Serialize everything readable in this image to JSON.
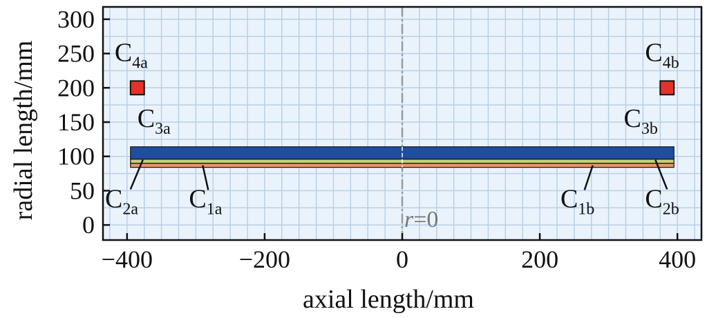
{
  "chart_data": {
    "type": "diagram",
    "xlabel": "axial length/mm",
    "ylabel": "radial length/mm",
    "xlim": [
      -435,
      435
    ],
    "ylim": [
      -22,
      318
    ],
    "xticks": [
      -400,
      -200,
      0,
      200,
      400
    ],
    "xtick_labels": [
      "−400",
      "−200",
      "0",
      "200",
      "400"
    ],
    "yticks": [
      0,
      50,
      100,
      150,
      200,
      250,
      300
    ],
    "ytick_labels": [
      "0",
      "50",
      "100",
      "150",
      "200",
      "250",
      "300"
    ],
    "grid": true,
    "minor_grid": true,
    "centerline": {
      "x": 0,
      "label_italic": "r",
      "label_rest": "=0"
    },
    "layers": [
      {
        "name": "C1",
        "x": [
          -395,
          395
        ],
        "y": [
          84,
          90
        ],
        "color": "#e8956b"
      },
      {
        "name": "C2",
        "x": [
          -395,
          395
        ],
        "y": [
          90,
          96
        ],
        "color": "#c8cc7a"
      },
      {
        "name": "C3",
        "x": [
          -395,
          395
        ],
        "y": [
          96,
          114
        ],
        "color": "#1f4e9e"
      }
    ],
    "coils": [
      {
        "name": "C4a",
        "x": -385,
        "y": 200,
        "size": 20,
        "color": "#e53228"
      },
      {
        "name": "C4b",
        "x": 385,
        "y": 200,
        "size": 20,
        "color": "#e53228"
      }
    ],
    "labels": [
      {
        "base": "C",
        "sub": "4a",
        "x": -418,
        "y": 239
      },
      {
        "base": "C",
        "sub": "4b",
        "x": 353,
        "y": 239
      },
      {
        "base": "C",
        "sub": "3a",
        "x": -385,
        "y": 143
      },
      {
        "base": "C",
        "sub": "3b",
        "x": 322,
        "y": 143
      },
      {
        "base": "C",
        "sub": "2a",
        "x": -432,
        "y": 26
      },
      {
        "base": "C",
        "sub": "2b",
        "x": 353,
        "y": 26
      },
      {
        "base": "C",
        "sub": "1a",
        "x": -310,
        "y": 26
      },
      {
        "base": "C",
        "sub": "1b",
        "x": 230,
        "y": 26
      }
    ],
    "leaders": [
      {
        "from": [
          -377,
          95
        ],
        "to": [
          -395,
          52
        ]
      },
      {
        "from": [
          -290,
          87
        ],
        "to": [
          -282,
          51
        ]
      },
      {
        "from": [
          277,
          87
        ],
        "to": [
          265,
          51
        ]
      },
      {
        "from": [
          368,
          95
        ],
        "to": [
          385,
          52
        ]
      }
    ]
  }
}
